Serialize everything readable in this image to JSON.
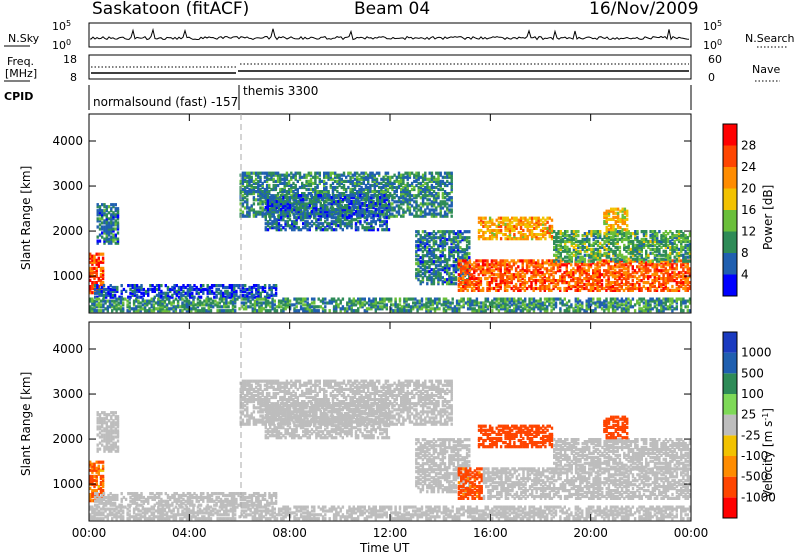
{
  "header": {
    "station": "Saskatoon (fitACF)",
    "beam": "Beam 04",
    "date": "16/Nov/2009"
  },
  "side_labels": {
    "nsky": "N.Sky",
    "nsearch": "N.Search",
    "freq_line1": "Freq.",
    "freq_line2": "[MHz]",
    "nave": "Nave",
    "cpid": "CPID"
  },
  "cpid_text": {
    "first": "normalsound (fast) -157",
    "second": "themis 3300"
  },
  "panels": {
    "noise": {
      "left_ticks": [
        "10^5",
        "10^0"
      ],
      "right_ticks": [
        "10^5",
        "10^0"
      ]
    },
    "freq": {
      "left_ticks": [
        "18",
        "8"
      ],
      "right_ticks": [
        "60",
        "0"
      ]
    }
  },
  "colors": {
    "power_scale": [
      "#0000ff",
      "#1f5fb0",
      "#2e8b57",
      "#6abf3a",
      "#f2c200",
      "#ff8c00",
      "#ff4500",
      "#ff0000"
    ],
    "velocity_scale": [
      "#ff0000",
      "#ff4500",
      "#ff8c00",
      "#f2c200",
      "#bdbdbd",
      "#7ed957",
      "#2e8b57",
      "#1f5fb0",
      "#1a3ac0"
    ],
    "ground_scatter": "#bdbdbd"
  },
  "colorbars": {
    "power": {
      "label": "Power [dB]",
      "ticks": [
        "28",
        "24",
        "20",
        "16",
        "12",
        "8",
        "4"
      ]
    },
    "velocity": {
      "label": "Velocity [m s",
      "label_sup": "-1",
      "label_end": "]",
      "ticks": [
        "1000",
        "500",
        "100",
        "25",
        "-25",
        "-100",
        "-500",
        "-1000"
      ]
    }
  },
  "chart_data": [
    {
      "type": "heatmap",
      "title": "Power [dB]",
      "ylabel": "Slant Range [km]",
      "xlabel": "Time UT",
      "x_ticks": [
        "00:00",
        "04:00",
        "08:00",
        "12:00",
        "16:00",
        "20:00",
        "00:00"
      ],
      "y_ticks": [
        "4000",
        "3000",
        "2000",
        "1000"
      ],
      "ylim": [
        180,
        4600
      ],
      "xlim_hours": [
        0,
        24
      ],
      "value_range": [
        0,
        30
      ],
      "regions": [
        {
          "t0": 0.0,
          "t1": 0.6,
          "r0": 600,
          "r1": 1500,
          "v": 26
        },
        {
          "t0": 0.3,
          "t1": 1.2,
          "r0": 1700,
          "r1": 2600,
          "v": 8
        },
        {
          "t0": 0.2,
          "t1": 7.5,
          "r0": 500,
          "r1": 800,
          "v": 5
        },
        {
          "t0": 0.0,
          "t1": 24.0,
          "r0": 200,
          "r1": 500,
          "v": 10
        },
        {
          "t0": 6.0,
          "t1": 14.5,
          "r0": 2300,
          "r1": 3300,
          "v": 9
        },
        {
          "t0": 7.0,
          "t1": 12.0,
          "r0": 2000,
          "r1": 2800,
          "v": 7
        },
        {
          "t0": 13.0,
          "t1": 15.2,
          "r0": 800,
          "r1": 2000,
          "v": 8
        },
        {
          "t0": 14.7,
          "t1": 24.0,
          "r0": 650,
          "r1": 1350,
          "v": 25
        },
        {
          "t0": 15.5,
          "t1": 18.5,
          "r0": 1800,
          "r1": 2300,
          "v": 20
        },
        {
          "t0": 18.5,
          "t1": 24.0,
          "r0": 1300,
          "r1": 2000,
          "v": 12
        },
        {
          "t0": 20.5,
          "t1": 21.5,
          "r0": 2000,
          "r1": 2500,
          "v": 19
        }
      ]
    },
    {
      "type": "heatmap",
      "title": "Velocity [m s-1]",
      "ylabel": "Slant Range [km]",
      "xlabel": "Time UT",
      "x_ticks": [
        "00:00",
        "04:00",
        "08:00",
        "12:00",
        "16:00",
        "20:00",
        "00:00"
      ],
      "y_ticks": [
        "4000",
        "3000",
        "2000",
        "1000"
      ],
      "ylim": [
        180,
        4600
      ],
      "xlim_hours": [
        0,
        24
      ],
      "value_range": [
        -1000,
        1000
      ],
      "regions": [
        {
          "t0": 0.0,
          "t1": 0.6,
          "r0": 600,
          "r1": 1500,
          "v": -120
        },
        {
          "t0": 0.3,
          "t1": 1.2,
          "r0": 1700,
          "r1": 2600,
          "v": 0,
          "ground": true
        },
        {
          "t0": 0.2,
          "t1": 7.5,
          "r0": 500,
          "r1": 800,
          "v": 0,
          "ground": true
        },
        {
          "t0": 0.0,
          "t1": 24.0,
          "r0": 200,
          "r1": 500,
          "v": 0,
          "ground": true
        },
        {
          "t0": 6.0,
          "t1": 14.5,
          "r0": 2300,
          "r1": 3300,
          "v": 0,
          "ground": true
        },
        {
          "t0": 7.0,
          "t1": 12.0,
          "r0": 2000,
          "r1": 2800,
          "v": 0,
          "ground": true
        },
        {
          "t0": 13.0,
          "t1": 15.2,
          "r0": 800,
          "r1": 2000,
          "v": 0,
          "ground": true
        },
        {
          "t0": 14.7,
          "t1": 15.7,
          "r0": 650,
          "r1": 1350,
          "v": -180
        },
        {
          "t0": 15.7,
          "t1": 24.0,
          "r0": 650,
          "r1": 1350,
          "v": 0,
          "ground": true
        },
        {
          "t0": 15.5,
          "t1": 18.5,
          "r0": 1800,
          "r1": 2300,
          "v": -220
        },
        {
          "t0": 18.5,
          "t1": 24.0,
          "r0": 1300,
          "r1": 2000,
          "v": 0,
          "ground": true
        },
        {
          "t0": 20.5,
          "t1": 21.5,
          "r0": 2000,
          "r1": 2500,
          "v": -400
        }
      ]
    }
  ]
}
